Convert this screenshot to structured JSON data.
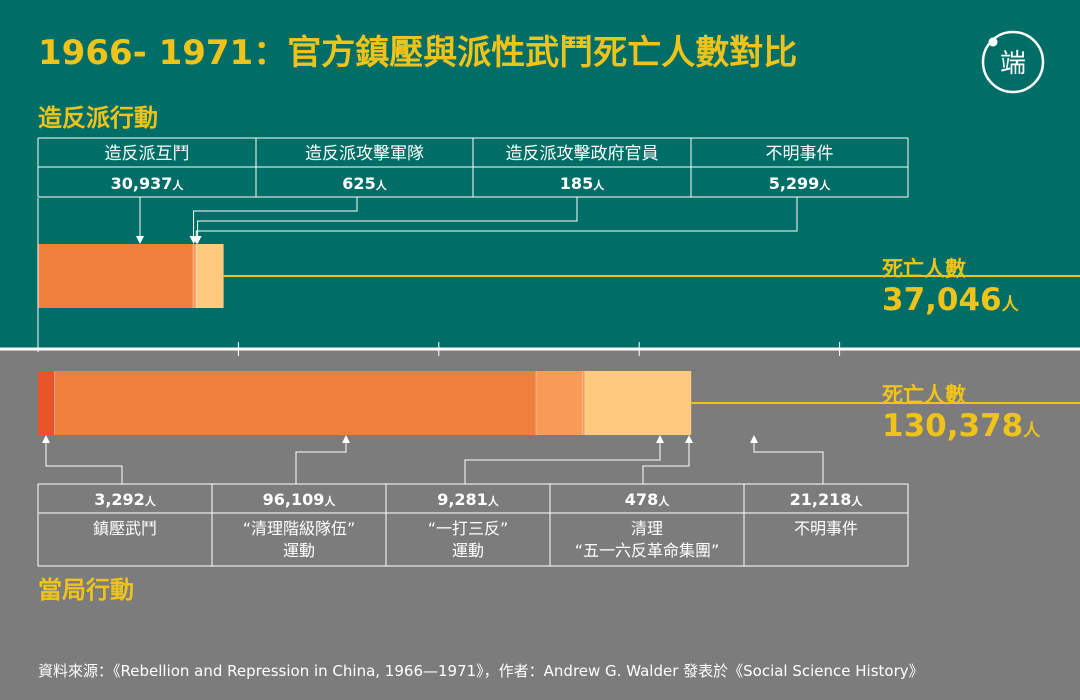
{
  "title": "1966- 1971：官方鎮壓與派性武鬥死亡人數對比",
  "logo_text": "端",
  "colors": {
    "top_bg": "#006e66",
    "bottom_bg": "#7c7c7c",
    "yellow": "#f0c31a",
    "seg_a": "#e8542a",
    "seg_b": "#f07f3c",
    "seg_c": "#f99a56",
    "seg_d": "#ffca7e",
    "seg_e": "#ffe1a4"
  },
  "rebel": {
    "section_label": "造反派行動",
    "total_label": "死亡人數",
    "total_value": "37,046",
    "unit": "人",
    "categories": [
      {
        "label": "造反派互鬥",
        "value": "30,937"
      },
      {
        "label": "造反派攻擊軍隊",
        "value": "625"
      },
      {
        "label": "造反派攻擊政府官員",
        "value": "185"
      },
      {
        "label": "不明事件",
        "value": "5,299"
      }
    ]
  },
  "auth": {
    "section_label": "當局行動",
    "total_label": "死亡人數",
    "total_value": "130,378",
    "unit": "人",
    "categories": [
      {
        "value": "3,292",
        "label_lines": [
          "鎮壓武鬥"
        ]
      },
      {
        "value": "96,109",
        "label_lines": [
          "“清理階級隊伍”",
          "運動"
        ]
      },
      {
        "value": "9,281",
        "label_lines": [
          "“一打三反”",
          "運動"
        ]
      },
      {
        "value": "478",
        "label_lines": [
          "清理",
          "“五一六反革命集團”"
        ]
      },
      {
        "value": "21,218",
        "label_lines": [
          "不明事件"
        ]
      }
    ]
  },
  "source": "資料來源：《Rebellion and Repression in China, 1966—1971》，作者：Andrew G. Walder 發表於《Social Science History》",
  "chart_data": {
    "type": "bar",
    "orientation": "horizontal stacked",
    "title": "1966- 1971：官方鎮壓與派性武鬥死亡人數對比",
    "categories": [
      "造反派行動",
      "當局行動"
    ],
    "series": [
      {
        "group": "造反派行動",
        "name": "造反派互鬥",
        "values": [
          30937,
          0
        ]
      },
      {
        "group": "造反派行動",
        "name": "造反派攻擊軍隊",
        "values": [
          625,
          0
        ]
      },
      {
        "group": "造反派行動",
        "name": "造反派攻擊政府官員",
        "values": [
          185,
          0
        ]
      },
      {
        "group": "造反派行動",
        "name": "不明事件",
        "values": [
          5299,
          0
        ]
      },
      {
        "group": "當局行動",
        "name": "鎮壓武鬥",
        "values": [
          0,
          3292
        ]
      },
      {
        "group": "當局行動",
        "name": "“清理階級隊伍”運動",
        "values": [
          0,
          96109
        ]
      },
      {
        "group": "當局行動",
        "name": "“一打三反”運動",
        "values": [
          0,
          9281
        ]
      },
      {
        "group": "當局行動",
        "name": "清理“五一六反革命集團”",
        "values": [
          0,
          478
        ]
      },
      {
        "group": "當局行動",
        "name": "不明事件",
        "values": [
          0,
          21218
        ]
      }
    ],
    "totals": [
      37046,
      130378
    ],
    "xlim": [
      0,
      200000
    ],
    "grid": false,
    "legend": "none"
  }
}
